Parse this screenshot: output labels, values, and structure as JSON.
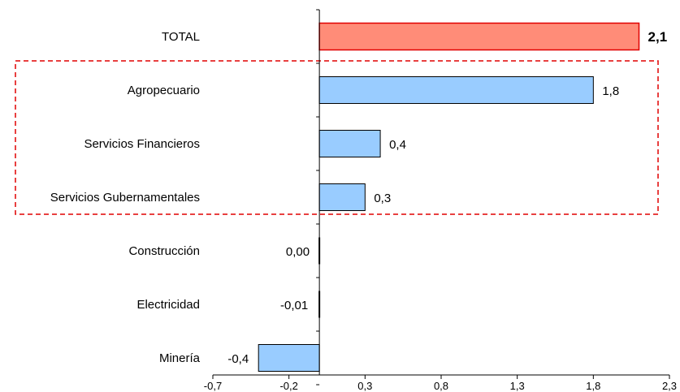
{
  "chart_data": {
    "type": "bar",
    "orientation": "horizontal",
    "categories": [
      "TOTAL",
      "Agropecuario",
      "Servicios Financieros",
      "Servicios Gubernamentales",
      "Construcción",
      "Electricidad",
      "Minería"
    ],
    "values": [
      2.1,
      1.8,
      0.4,
      0.3,
      0.0,
      -0.01,
      -0.4
    ],
    "value_labels": [
      "2,1",
      "1,8",
      "0,4",
      "0,3",
      "0,00",
      "-0,01",
      "-0,4"
    ],
    "xlim": [
      -0.7,
      2.3
    ],
    "xticks": [
      -0.7,
      -0.2,
      0.3,
      0.8,
      1.3,
      1.8,
      2.3
    ],
    "xtick_labels": [
      "-0,7",
      "-0,2",
      "0,3",
      "0,8",
      "1,3",
      "1,8",
      "2,3"
    ],
    "highlight_group": [
      "Agropecuario",
      "Servicios Financieros",
      "Servicios Gubernamentales"
    ],
    "title": "",
    "xlabel": "",
    "ylabel": "",
    "grid": false,
    "legend": "none"
  },
  "colors": {
    "total_fill": "#FF8C78",
    "total_stroke": "#E00000",
    "bar_fill": "#99CCFF",
    "bar_stroke": "#000000",
    "highlight_box": "#E00000",
    "axis": "#000000"
  }
}
